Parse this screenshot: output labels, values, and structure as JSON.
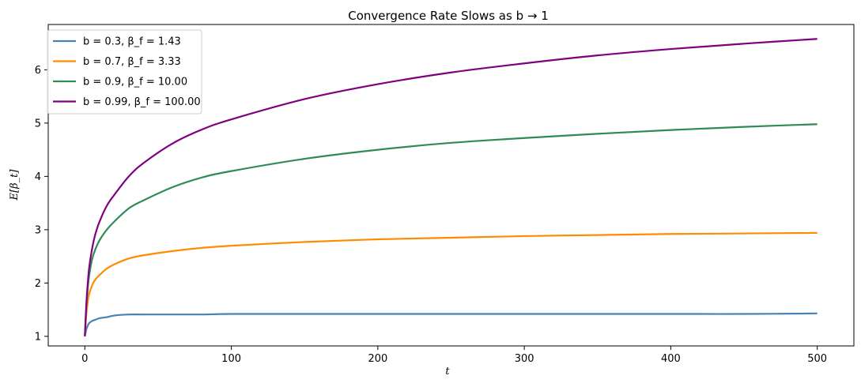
{
  "chart_data": {
    "type": "line",
    "title": "Convergence Rate Slows as b → 1",
    "xlabel": "t",
    "ylabel": "E[β_t]",
    "xlim": [
      -25,
      525
    ],
    "ylim": [
      0.82,
      6.85
    ],
    "xticks": [
      0,
      100,
      200,
      300,
      400,
      500
    ],
    "yticks": [
      1,
      2,
      3,
      4,
      5,
      6
    ],
    "grid": false,
    "legend_position": "top-left",
    "series": [
      {
        "name": "b = 0.3, β_f = 1.43",
        "color": "#4682b4",
        "x": [
          0,
          1,
          2,
          3,
          5,
          7,
          10,
          15,
          20,
          30,
          40,
          60,
          80,
          100,
          150,
          200,
          250,
          300,
          350,
          400,
          450,
          500
        ],
        "y": [
          1.0,
          1.13,
          1.2,
          1.25,
          1.29,
          1.31,
          1.34,
          1.36,
          1.39,
          1.41,
          1.41,
          1.41,
          1.41,
          1.42,
          1.42,
          1.42,
          1.42,
          1.42,
          1.42,
          1.42,
          1.42,
          1.43
        ]
      },
      {
        "name": "b = 0.7, β_f = 3.33",
        "color": "#ff8c00",
        "x": [
          0,
          1,
          2,
          3,
          5,
          7,
          10,
          15,
          20,
          30,
          40,
          60,
          80,
          100,
          150,
          200,
          250,
          300,
          350,
          400,
          450,
          500
        ],
        "y": [
          1.0,
          1.4,
          1.65,
          1.8,
          1.96,
          2.06,
          2.15,
          2.27,
          2.35,
          2.46,
          2.52,
          2.6,
          2.66,
          2.7,
          2.77,
          2.82,
          2.85,
          2.88,
          2.9,
          2.92,
          2.93,
          2.94
        ]
      },
      {
        "name": "b = 0.9, β_f = 10.00",
        "color": "#2e8b57",
        "x": [
          0,
          1,
          2,
          3,
          5,
          7,
          10,
          15,
          20,
          30,
          40,
          60,
          80,
          100,
          150,
          200,
          250,
          300,
          350,
          400,
          450,
          500
        ],
        "y": [
          1.0,
          1.55,
          1.9,
          2.15,
          2.45,
          2.62,
          2.8,
          3.0,
          3.15,
          3.4,
          3.55,
          3.8,
          3.98,
          4.1,
          4.33,
          4.5,
          4.63,
          4.72,
          4.8,
          4.87,
          4.93,
          4.98
        ]
      },
      {
        "name": "b = 0.99, β_f = 100.00",
        "color": "#800080",
        "x": [
          0,
          1,
          2,
          3,
          5,
          7,
          10,
          15,
          20,
          30,
          40,
          60,
          80,
          100,
          150,
          200,
          250,
          300,
          350,
          400,
          450,
          500
        ],
        "y": [
          1.0,
          1.6,
          2.0,
          2.3,
          2.65,
          2.9,
          3.15,
          3.45,
          3.65,
          4.0,
          4.25,
          4.62,
          4.88,
          5.07,
          5.45,
          5.73,
          5.95,
          6.12,
          6.27,
          6.39,
          6.49,
          6.58
        ]
      }
    ]
  }
}
